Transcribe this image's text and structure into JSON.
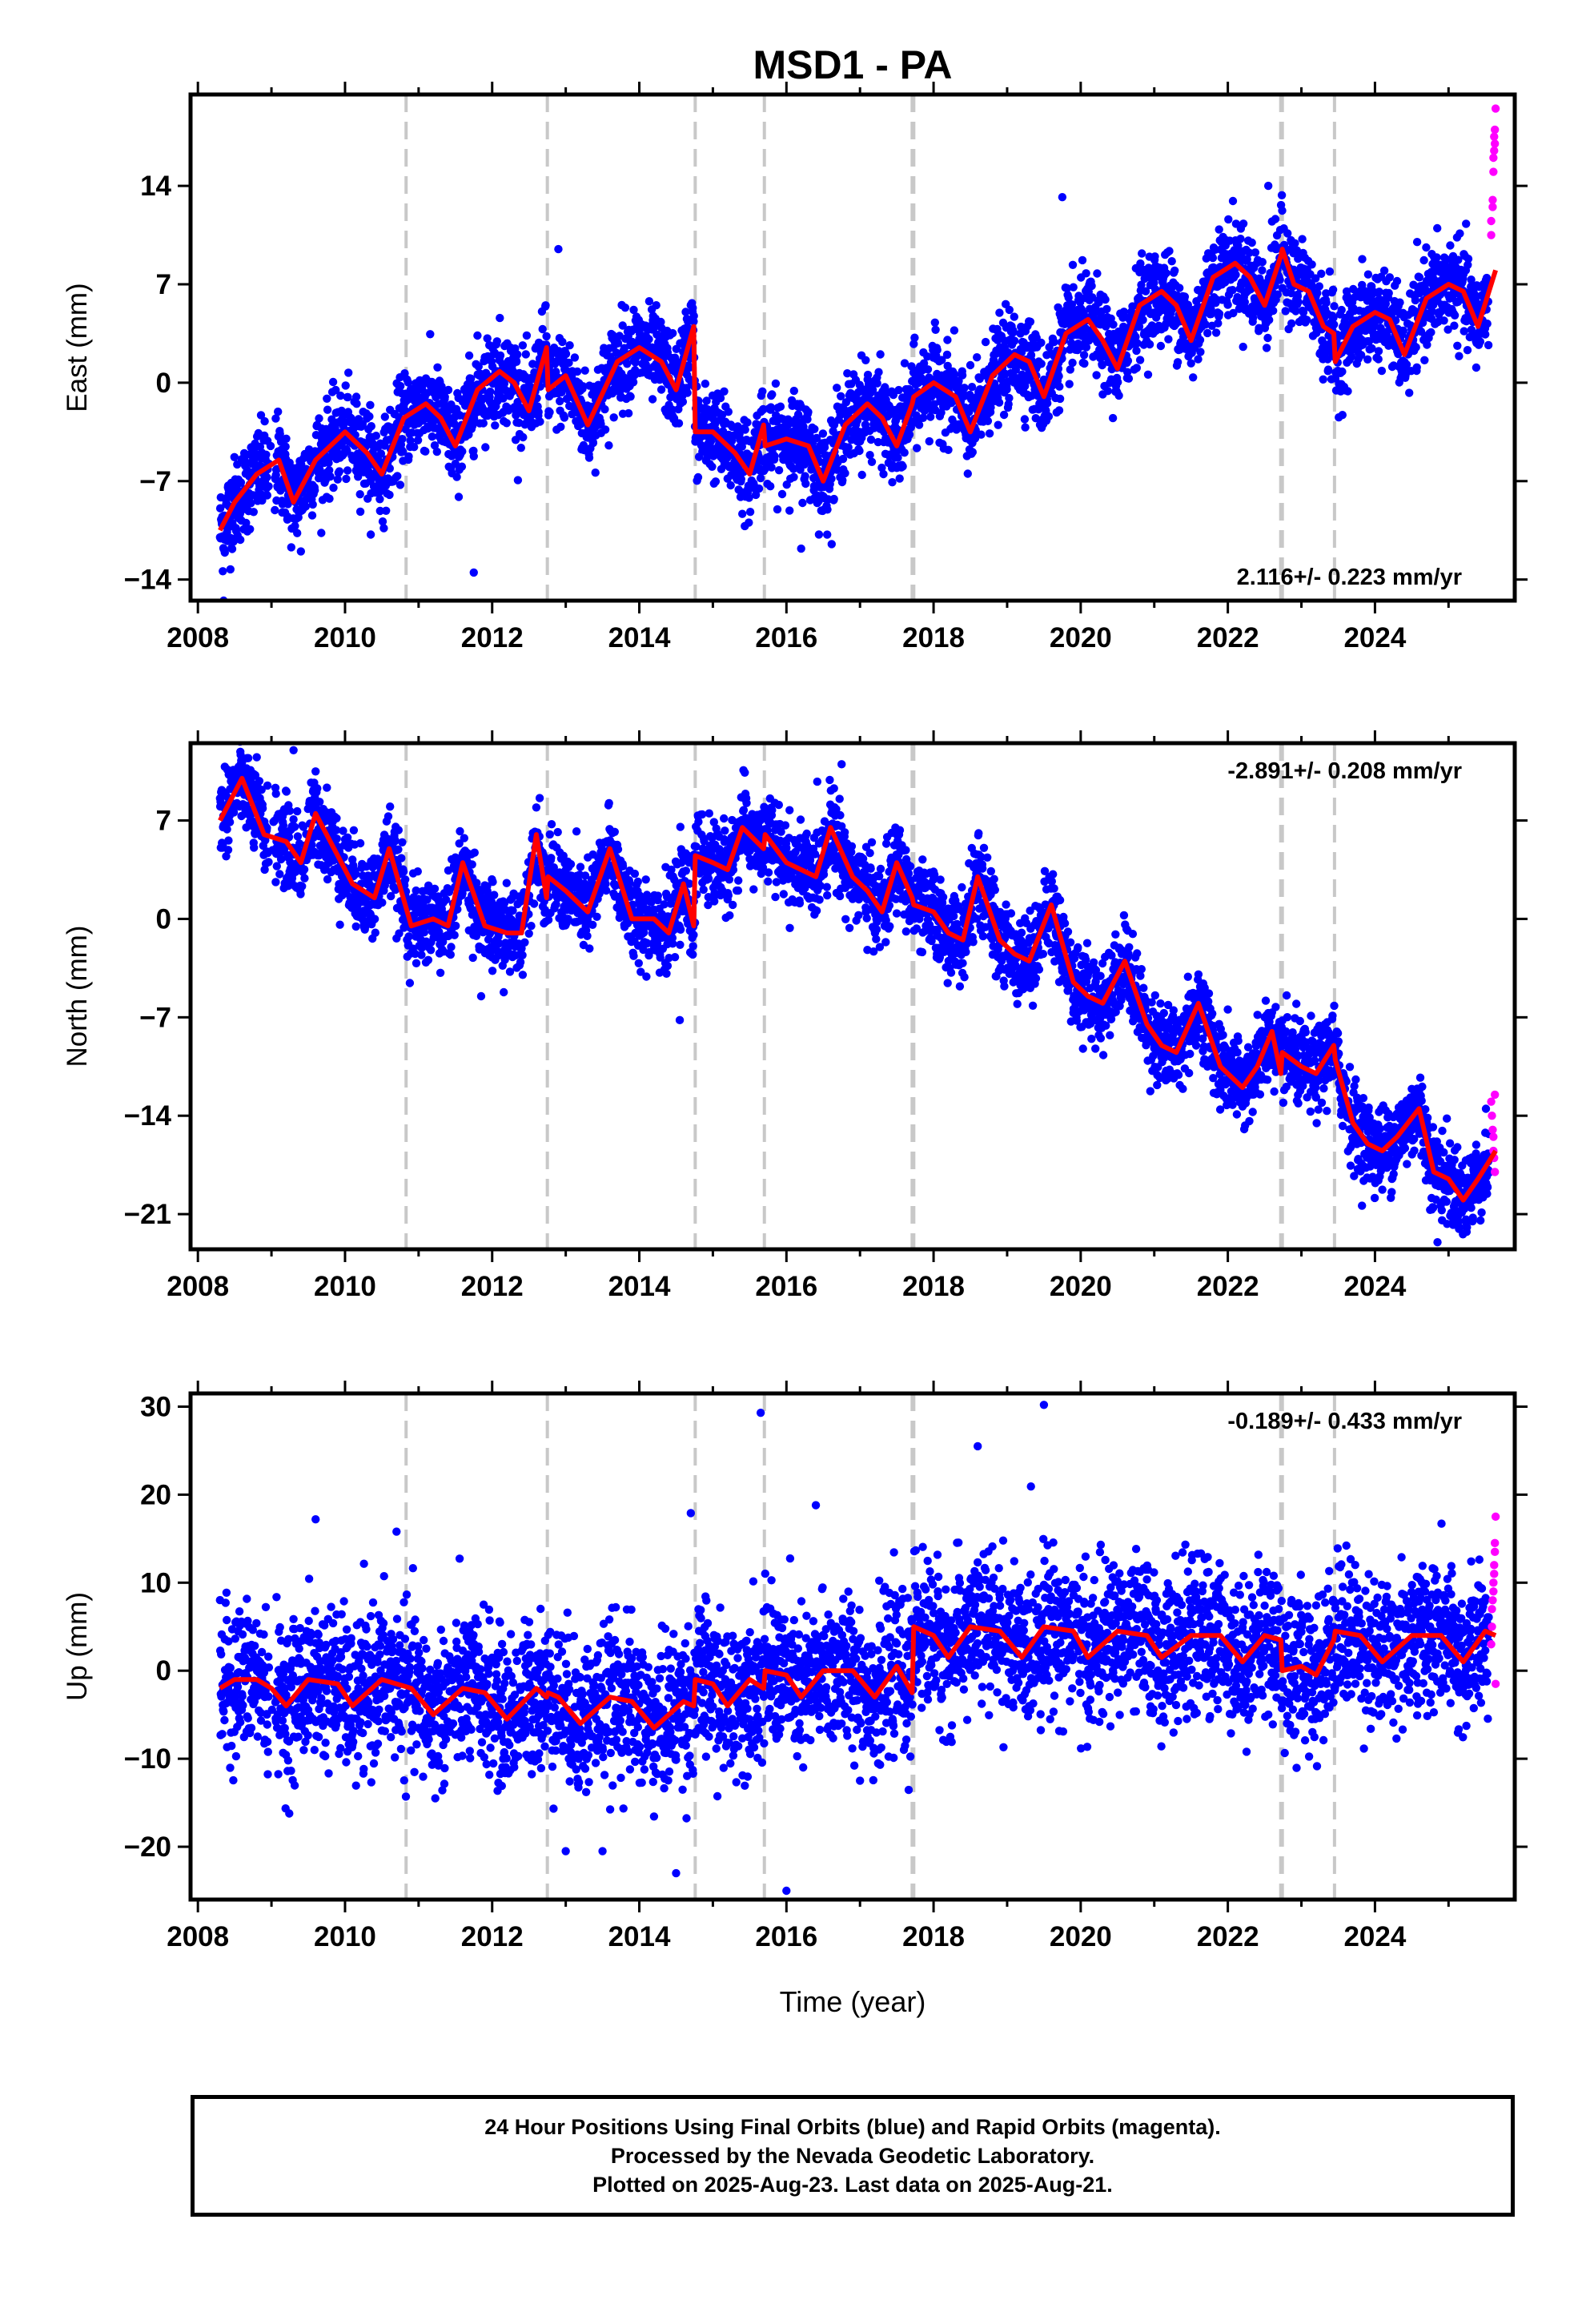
{
  "title": "MSD1 - PA",
  "xlabel": "Time (year)",
  "x_ticks": [
    2008,
    2010,
    2012,
    2014,
    2016,
    2018,
    2020,
    2022,
    2024
  ],
  "colors": {
    "final": "#0000ff",
    "rapid": "#ff00ff",
    "model": "#ff0000",
    "steps": "#c8c8c8"
  },
  "caption": {
    "line1": "24 Hour Positions Using Final Orbits (blue) and Rapid Orbits (magenta).",
    "line2": "Processed by the Nevada Geodetic Laboratory.",
    "line3": "Plotted on 2025-Aug-23. Last data on 2025-Aug-21."
  },
  "chart_data": [
    {
      "type": "scatter",
      "component": "east",
      "ylabel": "East (mm)",
      "rate_label": "2.116+/- 0.223 mm/yr",
      "rate_position": "bottom-right",
      "xlim": [
        2007.9,
        2025.9
      ],
      "ylim": [
        -15.5,
        20.5
      ],
      "yticks": [
        -14,
        -7,
        0,
        7,
        14
      ],
      "steps": [
        2010.83,
        2012.75,
        2014.76,
        2015.7,
        2017.72,
        2022.73,
        2023.45
      ],
      "model": [
        [
          2008.3,
          -10.5
        ],
        [
          2008.5,
          -8.5
        ],
        [
          2008.8,
          -6.5
        ],
        [
          2009.1,
          -5.5
        ],
        [
          2009.3,
          -8.5
        ],
        [
          2009.6,
          -5.5
        ],
        [
          2010.0,
          -3.5
        ],
        [
          2010.3,
          -5.0
        ],
        [
          2010.5,
          -6.5
        ],
        [
          2010.8,
          -2.5
        ],
        [
          2011.1,
          -1.5
        ],
        [
          2011.3,
          -2.5
        ],
        [
          2011.5,
          -4.5
        ],
        [
          2011.8,
          -0.5
        ],
        [
          2012.1,
          0.8
        ],
        [
          2012.3,
          0.0
        ],
        [
          2012.5,
          -2.0
        ],
        [
          2012.74,
          2.5
        ],
        [
          2012.76,
          -0.5
        ],
        [
          2013.0,
          0.5
        ],
        [
          2013.3,
          -3.0
        ],
        [
          2013.7,
          1.5
        ],
        [
          2014.0,
          2.5
        ],
        [
          2014.3,
          1.5
        ],
        [
          2014.5,
          -0.5
        ],
        [
          2014.74,
          4.0
        ],
        [
          2014.76,
          -3.5
        ],
        [
          2015.0,
          -3.5
        ],
        [
          2015.3,
          -5.0
        ],
        [
          2015.5,
          -6.5
        ],
        [
          2015.69,
          -3.0
        ],
        [
          2015.71,
          -4.5
        ],
        [
          2016.0,
          -4.0
        ],
        [
          2016.3,
          -4.5
        ],
        [
          2016.5,
          -7.0
        ],
        [
          2016.8,
          -3.0
        ],
        [
          2017.1,
          -1.5
        ],
        [
          2017.3,
          -2.5
        ],
        [
          2017.5,
          -4.5
        ],
        [
          2017.71,
          -1.5
        ],
        [
          2017.73,
          -1.0
        ],
        [
          2018.0,
          0.0
        ],
        [
          2018.3,
          -1.0
        ],
        [
          2018.5,
          -3.5
        ],
        [
          2018.8,
          0.5
        ],
        [
          2019.1,
          2.0
        ],
        [
          2019.3,
          1.5
        ],
        [
          2019.5,
          -1.0
        ],
        [
          2019.8,
          3.5
        ],
        [
          2020.1,
          4.5
        ],
        [
          2020.3,
          3.0
        ],
        [
          2020.5,
          1.0
        ],
        [
          2020.8,
          5.5
        ],
        [
          2021.1,
          6.5
        ],
        [
          2021.3,
          5.5
        ],
        [
          2021.5,
          3.0
        ],
        [
          2021.8,
          7.5
        ],
        [
          2022.1,
          8.5
        ],
        [
          2022.3,
          7.5
        ],
        [
          2022.5,
          5.5
        ],
        [
          2022.72,
          9.0
        ],
        [
          2022.74,
          9.5
        ],
        [
          2022.9,
          7.0
        ],
        [
          2023.1,
          6.5
        ],
        [
          2023.3,
          4.0
        ],
        [
          2023.44,
          3.5
        ],
        [
          2023.46,
          1.5
        ],
        [
          2023.7,
          4.0
        ],
        [
          2024.0,
          5.0
        ],
        [
          2024.2,
          4.5
        ],
        [
          2024.4,
          2.0
        ],
        [
          2024.7,
          6.0
        ],
        [
          2025.0,
          7.0
        ],
        [
          2025.2,
          6.5
        ],
        [
          2025.4,
          4.0
        ],
        [
          2025.64,
          8.0
        ]
      ],
      "trend": [
        [
          2008.3,
          -10.0
        ],
        [
          2025.64,
          5.0
        ]
      ],
      "noise_sd": 1.6,
      "final_end": 2025.55,
      "rapid": [
        [
          2025.58,
          10.5
        ],
        [
          2025.58,
          11.5
        ],
        [
          2025.6,
          12.5
        ],
        [
          2025.6,
          13.0
        ],
        [
          2025.61,
          15.0
        ],
        [
          2025.61,
          16.0
        ],
        [
          2025.62,
          16.5
        ],
        [
          2025.62,
          17.5
        ],
        [
          2025.63,
          18.0
        ],
        [
          2025.63,
          17.0
        ],
        [
          2025.64,
          19.5
        ]
      ],
      "outliers": [
        [
          2008.35,
          -15.5
        ],
        [
          2011.75,
          -13.5
        ],
        [
          2012.9,
          9.5
        ],
        [
          2016.2,
          -11.8
        ],
        [
          2019.75,
          13.2
        ],
        [
          2022.55,
          14.0
        ],
        [
          2009.4,
          -12.0
        ]
      ]
    },
    {
      "type": "scatter",
      "component": "north",
      "ylabel": "North (mm)",
      "rate_label": "-2.891+/- 0.208 mm/yr",
      "rate_position": "top-right",
      "xlim": [
        2007.9,
        2025.9
      ],
      "ylim": [
        -23.5,
        12.5
      ],
      "yticks": [
        -21,
        -14,
        -7,
        0,
        7
      ],
      "steps": [
        2010.83,
        2012.75,
        2014.76,
        2015.7,
        2017.72,
        2022.73,
        2023.45
      ],
      "model": [
        [
          2008.3,
          7.0
        ],
        [
          2008.6,
          10.0
        ],
        [
          2008.9,
          6.0
        ],
        [
          2009.2,
          5.5
        ],
        [
          2009.4,
          4.0
        ],
        [
          2009.6,
          7.5
        ],
        [
          2009.9,
          4.5
        ],
        [
          2010.1,
          2.5
        ],
        [
          2010.4,
          1.5
        ],
        [
          2010.6,
          5.0
        ],
        [
          2010.9,
          -0.5
        ],
        [
          2011.2,
          0.0
        ],
        [
          2011.4,
          -0.5
        ],
        [
          2011.6,
          4.0
        ],
        [
          2011.9,
          -0.5
        ],
        [
          2012.2,
          -1.0
        ],
        [
          2012.4,
          -1.0
        ],
        [
          2012.6,
          6.0
        ],
        [
          2012.74,
          1.5
        ],
        [
          2012.76,
          3.0
        ],
        [
          2013.0,
          2.0
        ],
        [
          2013.3,
          0.5
        ],
        [
          2013.6,
          5.0
        ],
        [
          2013.9,
          0.0
        ],
        [
          2014.2,
          0.0
        ],
        [
          2014.4,
          -1.0
        ],
        [
          2014.6,
          2.5
        ],
        [
          2014.74,
          -0.5
        ],
        [
          2014.76,
          4.5
        ],
        [
          2015.0,
          4.0
        ],
        [
          2015.2,
          3.5
        ],
        [
          2015.4,
          6.5
        ],
        [
          2015.69,
          5.0
        ],
        [
          2015.71,
          6.0
        ],
        [
          2016.0,
          4.0
        ],
        [
          2016.2,
          3.5
        ],
        [
          2016.4,
          3.0
        ],
        [
          2016.6,
          6.5
        ],
        [
          2016.9,
          3.0
        ],
        [
          2017.1,
          2.0
        ],
        [
          2017.3,
          0.5
        ],
        [
          2017.5,
          4.0
        ],
        [
          2017.71,
          1.5
        ],
        [
          2017.73,
          1.0
        ],
        [
          2018.0,
          0.5
        ],
        [
          2018.2,
          -1.0
        ],
        [
          2018.4,
          -1.5
        ],
        [
          2018.6,
          3.0
        ],
        [
          2018.9,
          -1.5
        ],
        [
          2019.1,
          -2.5
        ],
        [
          2019.3,
          -3.0
        ],
        [
          2019.6,
          1.0
        ],
        [
          2019.9,
          -4.5
        ],
        [
          2020.1,
          -5.5
        ],
        [
          2020.3,
          -6.0
        ],
        [
          2020.6,
          -3.0
        ],
        [
          2020.9,
          -7.5
        ],
        [
          2021.1,
          -9.0
        ],
        [
          2021.3,
          -9.5
        ],
        [
          2021.6,
          -6.0
        ],
        [
          2021.9,
          -10.5
        ],
        [
          2022.2,
          -12.0
        ],
        [
          2022.4,
          -10.5
        ],
        [
          2022.6,
          -8.0
        ],
        [
          2022.72,
          -11.0
        ],
        [
          2022.74,
          -9.5
        ],
        [
          2023.0,
          -10.5
        ],
        [
          2023.2,
          -11.0
        ],
        [
          2023.44,
          -9.0
        ],
        [
          2023.46,
          -10.0
        ],
        [
          2023.7,
          -14.5
        ],
        [
          2023.9,
          -16.0
        ],
        [
          2024.1,
          -16.5
        ],
        [
          2024.3,
          -15.5
        ],
        [
          2024.6,
          -13.5
        ],
        [
          2024.8,
          -18.0
        ],
        [
          2025.0,
          -18.5
        ],
        [
          2025.2,
          -20.0
        ],
        [
          2025.4,
          -18.5
        ],
        [
          2025.64,
          -16.5
        ]
      ],
      "trend": [
        [
          2008.3,
          7.0
        ],
        [
          2025.64,
          -17.0
        ]
      ],
      "noise_sd": 1.5,
      "final_end": 2025.55,
      "rapid": [
        [
          2025.58,
          -13.0
        ],
        [
          2025.59,
          -14.0
        ],
        [
          2025.6,
          -15.0
        ],
        [
          2025.61,
          -15.5
        ],
        [
          2025.61,
          -16.5
        ],
        [
          2025.62,
          -17.0
        ],
        [
          2025.63,
          -18.0
        ],
        [
          2025.63,
          -12.5
        ]
      ],
      "outliers": [
        [
          2008.8,
          11.5
        ],
        [
          2009.3,
          12.0
        ],
        [
          2014.55,
          -7.2
        ],
        [
          2011.85,
          -5.5
        ],
        [
          2016.75,
          11.0
        ],
        [
          2024.85,
          -23.0
        ]
      ]
    },
    {
      "type": "scatter",
      "component": "up",
      "ylabel": "Up (mm)",
      "rate_label": "-0.189+/- 0.433 mm/yr",
      "rate_position": "top-right",
      "xlim": [
        2007.9,
        2025.9
      ],
      "ylim": [
        -26,
        31.5
      ],
      "yticks": [
        -20,
        -10,
        0,
        10,
        20,
        30
      ],
      "steps": [
        2010.83,
        2012.75,
        2014.76,
        2015.7,
        2017.72,
        2022.73,
        2023.45
      ],
      "model": [
        [
          2008.3,
          -2.0
        ],
        [
          2008.5,
          -1.0
        ],
        [
          2008.8,
          -1.0
        ],
        [
          2009.0,
          -2.0
        ],
        [
          2009.2,
          -4.0
        ],
        [
          2009.5,
          -1.0
        ],
        [
          2009.9,
          -1.5
        ],
        [
          2010.1,
          -4.0
        ],
        [
          2010.5,
          -1.0
        ],
        [
          2010.9,
          -2.0
        ],
        [
          2011.2,
          -5.0
        ],
        [
          2011.6,
          -2.0
        ],
        [
          2011.9,
          -2.5
        ],
        [
          2012.2,
          -5.5
        ],
        [
          2012.6,
          -2.0
        ],
        [
          2012.74,
          -3.0
        ],
        [
          2012.76,
          -2.5
        ],
        [
          2012.9,
          -3.0
        ],
        [
          2013.2,
          -6.0
        ],
        [
          2013.6,
          -3.0
        ],
        [
          2013.9,
          -3.5
        ],
        [
          2014.2,
          -6.5
        ],
        [
          2014.6,
          -3.5
        ],
        [
          2014.74,
          -4.0
        ],
        [
          2014.76,
          -1.0
        ],
        [
          2015.0,
          -1.5
        ],
        [
          2015.2,
          -4.0
        ],
        [
          2015.5,
          -1.0
        ],
        [
          2015.69,
          -2.0
        ],
        [
          2015.71,
          0.0
        ],
        [
          2016.0,
          -0.5
        ],
        [
          2016.2,
          -3.0
        ],
        [
          2016.5,
          0.0
        ],
        [
          2016.9,
          0.0
        ],
        [
          2017.2,
          -3.0
        ],
        [
          2017.5,
          0.5
        ],
        [
          2017.71,
          -2.5
        ],
        [
          2017.73,
          5.0
        ],
        [
          2018.0,
          4.0
        ],
        [
          2018.2,
          1.5
        ],
        [
          2018.5,
          5.0
        ],
        [
          2018.9,
          4.5
        ],
        [
          2019.2,
          1.5
        ],
        [
          2019.5,
          5.0
        ],
        [
          2019.9,
          4.5
        ],
        [
          2020.1,
          1.5
        ],
        [
          2020.5,
          4.5
        ],
        [
          2020.9,
          4.0
        ],
        [
          2021.1,
          1.5
        ],
        [
          2021.5,
          4.0
        ],
        [
          2021.9,
          4.0
        ],
        [
          2022.2,
          1.0
        ],
        [
          2022.5,
          4.0
        ],
        [
          2022.72,
          3.5
        ],
        [
          2022.74,
          0.0
        ],
        [
          2023.0,
          0.5
        ],
        [
          2023.2,
          -0.5
        ],
        [
          2023.44,
          3.5
        ],
        [
          2023.46,
          4.5
        ],
        [
          2023.8,
          4.0
        ],
        [
          2024.1,
          1.0
        ],
        [
          2024.5,
          4.0
        ],
        [
          2024.9,
          4.0
        ],
        [
          2025.2,
          1.0
        ],
        [
          2025.5,
          4.5
        ],
        [
          2025.64,
          4.0
        ]
      ],
      "trend": [
        [
          2008.3,
          0.0
        ],
        [
          2025.64,
          0.0
        ]
      ],
      "noise_sd": 4.2,
      "final_end": 2025.55,
      "rapid": [
        [
          2025.58,
          3.0
        ],
        [
          2025.59,
          5.0
        ],
        [
          2025.59,
          7.0
        ],
        [
          2025.6,
          8.0
        ],
        [
          2025.61,
          9.0
        ],
        [
          2025.61,
          10.0
        ],
        [
          2025.62,
          11.0
        ],
        [
          2025.62,
          12.0
        ],
        [
          2025.63,
          13.5
        ],
        [
          2025.63,
          14.5
        ],
        [
          2025.64,
          17.5
        ],
        [
          2025.64,
          -1.5
        ]
      ],
      "outliers": [
        [
          2015.65,
          29.3
        ],
        [
          2019.5,
          30.2
        ],
        [
          2016.0,
          -25.0
        ],
        [
          2014.5,
          -23.0
        ],
        [
          2013.0,
          -20.5
        ],
        [
          2018.6,
          25.5
        ],
        [
          2013.5,
          -20.5
        ],
        [
          2009.6,
          17.2
        ],
        [
          2010.7,
          15.8
        ],
        [
          2014.7,
          17.9
        ],
        [
          2016.4,
          18.8
        ]
      ]
    }
  ]
}
